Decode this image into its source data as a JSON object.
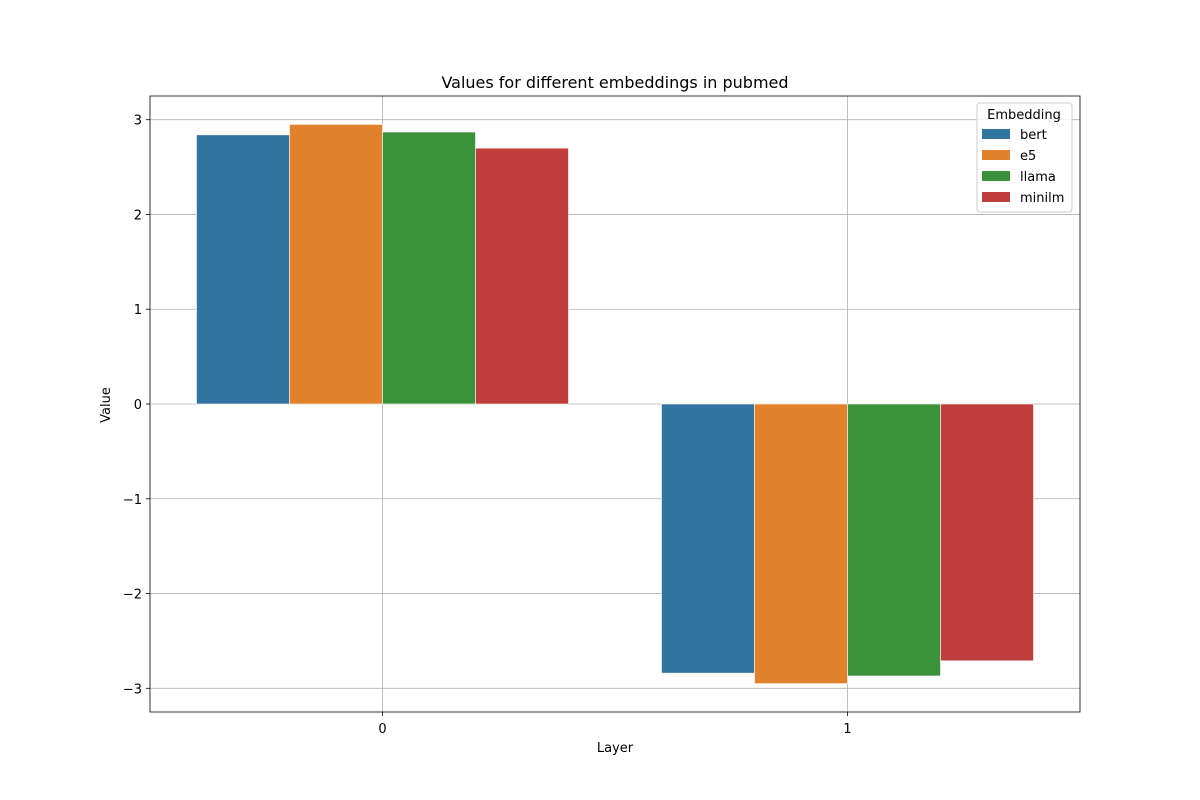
{
  "chart_data": {
    "type": "bar",
    "title": "Values for different embeddings in pubmed",
    "xlabel": "Layer",
    "ylabel": "Value",
    "categories": [
      "0",
      "1"
    ],
    "series": [
      {
        "name": "bert",
        "color": "#3274a1",
        "values": [
          2.84,
          -2.84
        ]
      },
      {
        "name": "e5",
        "color": "#e1812c",
        "values": [
          2.95,
          -2.95
        ]
      },
      {
        "name": "llama",
        "color": "#3a923a",
        "values": [
          2.87,
          -2.87
        ]
      },
      {
        "name": "minilm",
        "color": "#c03d3e",
        "values": [
          2.7,
          -2.71
        ]
      }
    ],
    "ylim": [
      -3.25,
      3.25
    ],
    "yticks": [
      -3,
      -2,
      -1,
      0,
      1,
      2,
      3
    ],
    "ytick_labels": [
      "−3",
      "−2",
      "−1",
      "0",
      "1",
      "2",
      "3"
    ],
    "grid": true,
    "legend": {
      "title": "Embedding",
      "placement": "top-right"
    }
  }
}
